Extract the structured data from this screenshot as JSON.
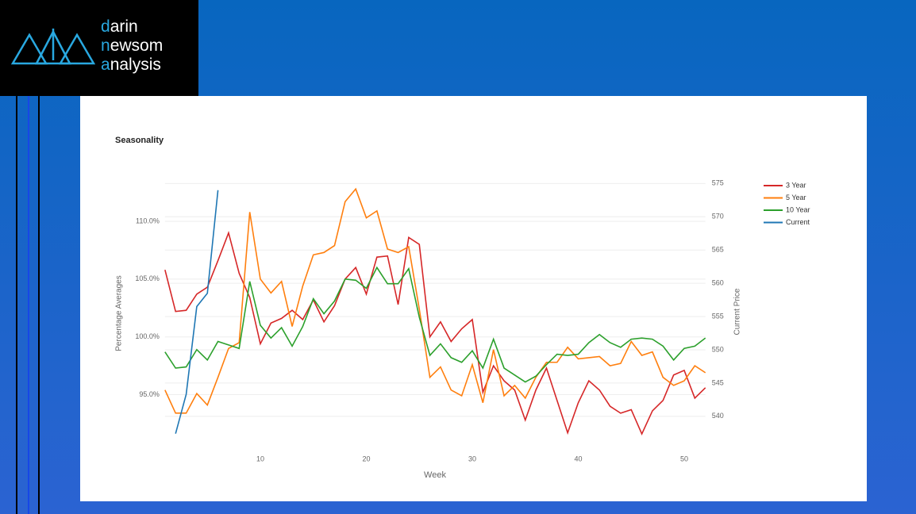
{
  "logo": {
    "lines": [
      "darin",
      "newsom",
      "analysis"
    ]
  },
  "chart_data": {
    "type": "line",
    "title": "Seasonality",
    "x_label": "Week",
    "y_label": "Percentage Averages",
    "y2_label": "Current Price",
    "x": [
      1,
      2,
      3,
      4,
      5,
      6,
      7,
      8,
      9,
      10,
      11,
      12,
      13,
      14,
      15,
      16,
      17,
      18,
      19,
      20,
      21,
      22,
      23,
      24,
      25,
      26,
      27,
      28,
      29,
      30,
      31,
      32,
      33,
      34,
      35,
      36,
      37,
      38,
      39,
      40,
      41,
      42,
      43,
      44,
      45,
      46,
      47,
      48,
      49,
      50,
      51,
      52
    ],
    "xlim": [
      1,
      52
    ],
    "xticks": [
      10,
      20,
      30,
      40,
      50
    ],
    "ylim": [
      91.4,
      113.5
    ],
    "yticks": [
      {
        "value": 95,
        "label": "95.0%"
      },
      {
        "value": 100,
        "label": "100.0%"
      },
      {
        "value": 105,
        "label": "105.0%"
      },
      {
        "value": 110,
        "label": "110.0%"
      }
    ],
    "y2lim": [
      537,
      575.4
    ],
    "y2ticks": [
      540,
      545,
      550,
      555,
      560,
      565,
      570,
      575
    ],
    "grid": true,
    "series": [
      {
        "name": "3 Year",
        "color": "#d62728",
        "values": [
          105.8,
          102.2,
          102.3,
          103.7,
          104.3,
          106.6,
          109.0,
          105.5,
          103.4,
          99.4,
          101.2,
          101.6,
          102.3,
          101.5,
          103.2,
          101.3,
          102.7,
          105.0,
          106.0,
          103.7,
          106.9,
          107.0,
          102.8,
          108.6,
          108.0,
          100.0,
          101.3,
          99.6,
          100.7,
          101.5,
          95.2,
          97.5,
          96.2,
          95.4,
          92.8,
          95.4,
          97.3,
          94.5,
          91.7,
          94.3,
          96.2,
          95.4,
          94.0,
          93.4,
          93.7,
          91.6,
          93.6,
          94.5,
          96.7,
          97.1,
          94.7,
          95.6
        ]
      },
      {
        "name": "5 Year",
        "color": "#ff7f0e",
        "values": [
          95.4,
          93.4,
          93.4,
          95.1,
          94.1,
          96.5,
          99.0,
          99.5,
          110.8,
          105.0,
          103.8,
          104.8,
          100.9,
          104.4,
          107.1,
          107.3,
          107.9,
          111.7,
          112.8,
          110.3,
          110.9,
          107.6,
          107.3,
          107.8,
          102.4,
          96.5,
          97.4,
          95.4,
          94.9,
          97.6,
          94.3,
          98.9,
          94.9,
          95.8,
          94.7,
          96.5,
          97.8,
          97.8,
          99.1,
          98.1,
          98.2,
          98.3,
          97.5,
          97.7,
          99.6,
          98.4,
          98.7,
          96.5,
          95.8,
          96.2,
          97.5,
          96.9
        ]
      },
      {
        "name": "10 Year",
        "color": "#2ca02c",
        "values": [
          98.7,
          97.3,
          97.4,
          98.9,
          98.0,
          99.6,
          99.3,
          99.0,
          104.8,
          101.0,
          99.9,
          100.8,
          99.2,
          100.9,
          103.3,
          102.0,
          103.1,
          105.0,
          104.9,
          104.2,
          106.0,
          104.6,
          104.6,
          105.9,
          101.7,
          98.4,
          99.4,
          98.2,
          97.8,
          98.8,
          97.3,
          99.8,
          97.3,
          96.7,
          96.1,
          96.6,
          97.6,
          98.5,
          98.4,
          98.5,
          99.5,
          100.2,
          99.5,
          99.1,
          99.8,
          99.9,
          99.8,
          99.2,
          98.0,
          99.0,
          99.2,
          99.9
        ]
      },
      {
        "name": "Current",
        "color": "#1f77b4",
        "axis": "y2",
        "x": [
          2,
          3,
          4,
          5,
          6
        ],
        "values": [
          537.4,
          543.3,
          556.5,
          558.5,
          574.0
        ]
      }
    ]
  }
}
